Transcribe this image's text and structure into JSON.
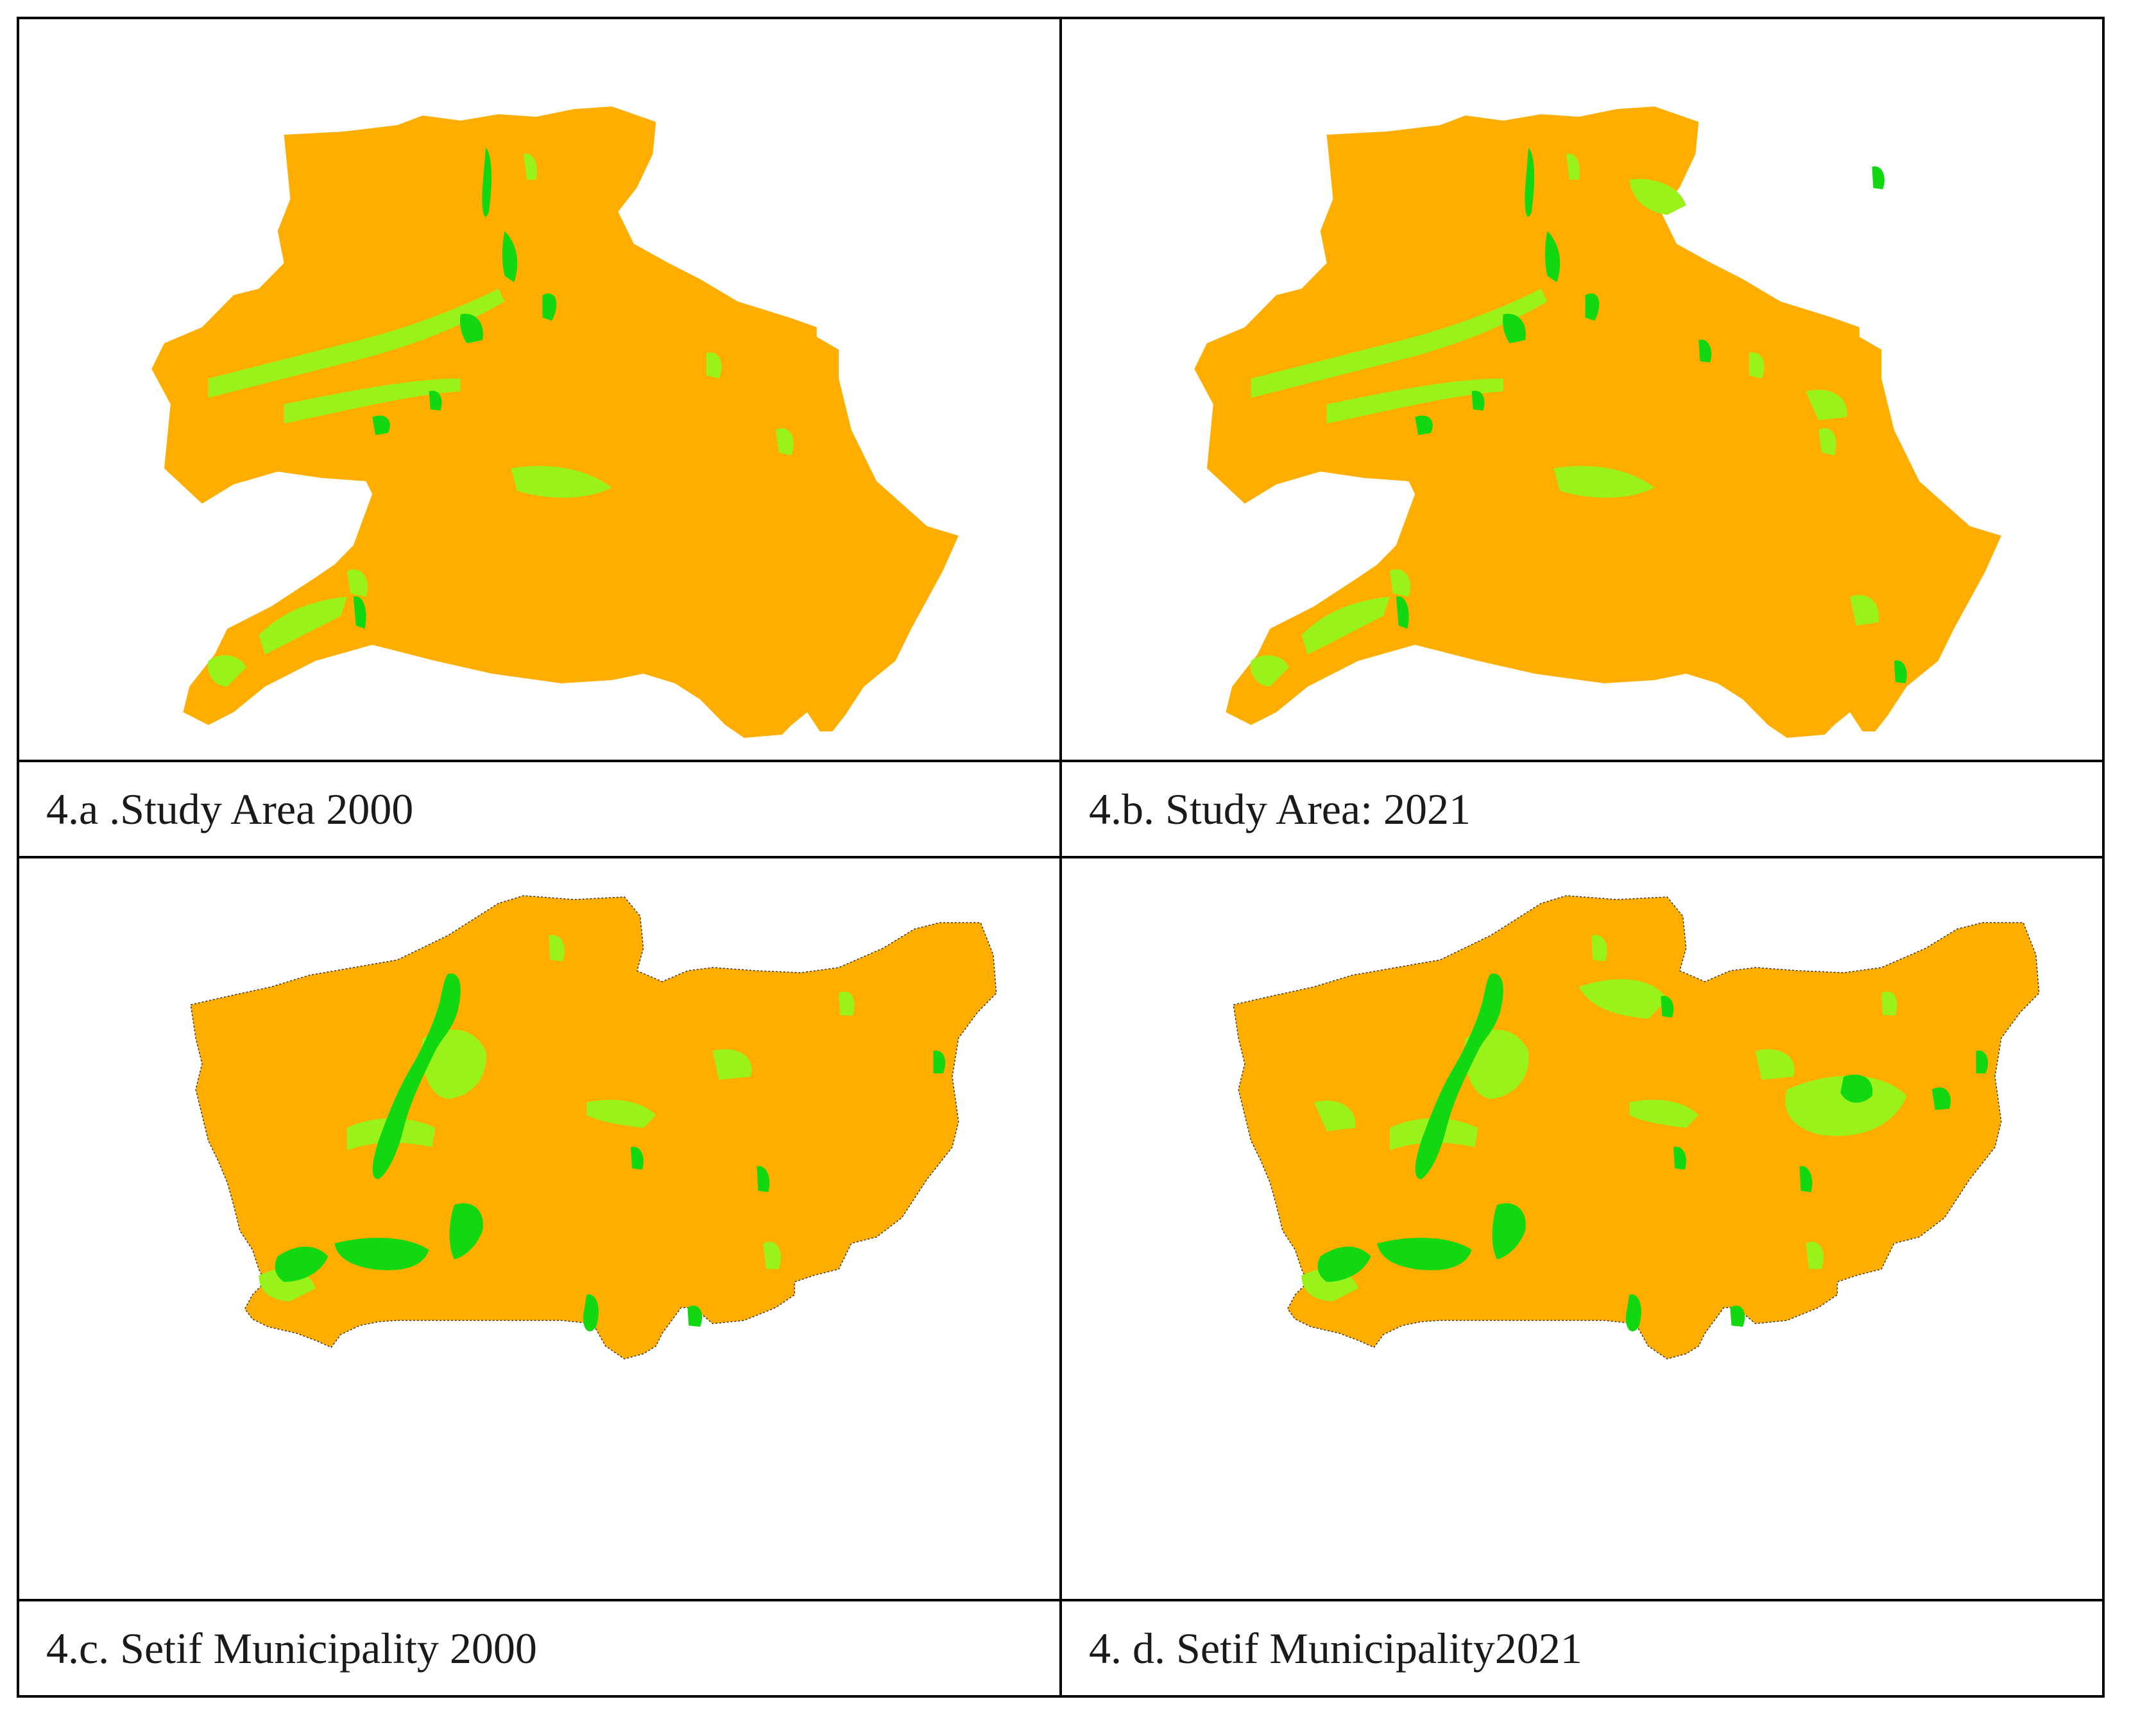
{
  "colors": {
    "base": "#FFAE00",
    "light_vegetation": "#99F21A",
    "dense_vegetation": "#12D812",
    "border": "#000000",
    "background": "#FFFFFF"
  },
  "panels": [
    {
      "caption": "4.a .Study Area 2000",
      "map": "study-area",
      "year": "2000"
    },
    {
      "caption": "4.b. Study Area: 2021",
      "map": "study-area",
      "year": "2021"
    },
    {
      "caption": "4.c. Setif Municipality 2000",
      "map": "municipality",
      "year": "2000"
    },
    {
      "caption": "4. d. Setif Municipality2021",
      "map": "municipality",
      "year": "2021"
    }
  ]
}
